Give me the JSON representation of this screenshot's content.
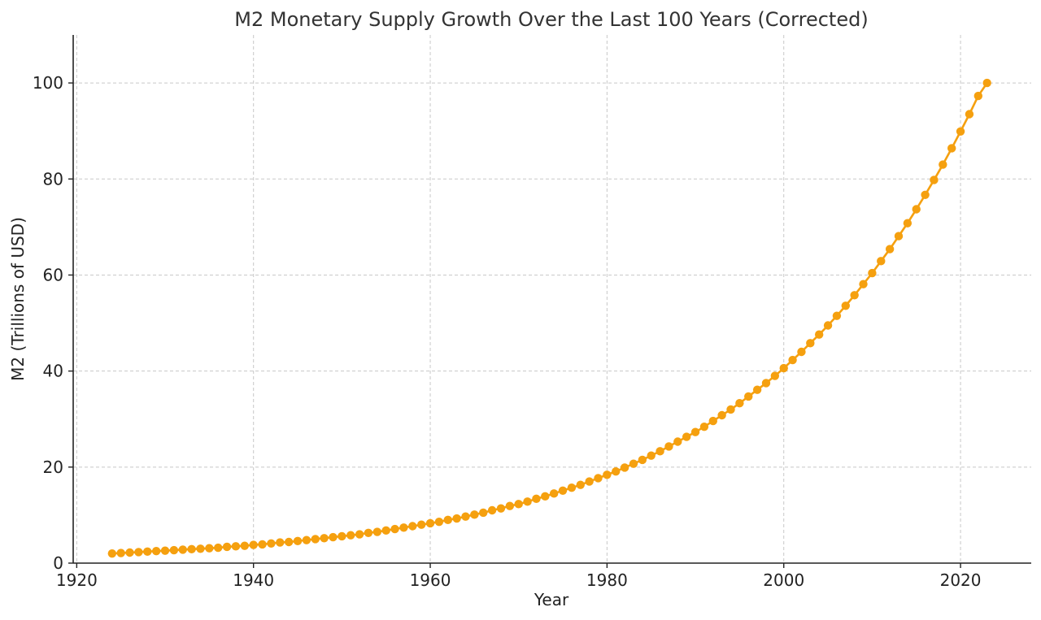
{
  "chart_data": {
    "type": "line",
    "title": "M2 Monetary Supply Growth Over the Last 100 Years (Corrected)",
    "xlabel": "Year",
    "ylabel": "M2 (Trillions of USD)",
    "xlim": [
      1919.6,
      2028.0
    ],
    "ylim": [
      0,
      110
    ],
    "xticks": [
      1920,
      1940,
      1960,
      1980,
      2000,
      2020
    ],
    "yticks": [
      0,
      20,
      40,
      60,
      80,
      100
    ],
    "grid": true,
    "color": "#f5a00f",
    "series": [
      {
        "x": [
          1924,
          1925,
          1926,
          1927,
          1928,
          1929,
          1930,
          1931,
          1932,
          1933,
          1934,
          1935,
          1936,
          1937,
          1938,
          1939,
          1940,
          1941,
          1942,
          1943,
          1944,
          1945,
          1946,
          1947,
          1948,
          1949,
          1950,
          1951,
          1952,
          1953,
          1954,
          1955,
          1956,
          1957,
          1958,
          1959,
          1960,
          1961,
          1962,
          1963,
          1964,
          1965,
          1966,
          1967,
          1968,
          1969,
          1970,
          1971,
          1972,
          1973,
          1974,
          1975,
          1976,
          1977,
          1978,
          1979,
          1980,
          1981,
          1982,
          1983,
          1984,
          1985,
          1986,
          1987,
          1988,
          1989,
          1990,
          1991,
          1992,
          1993,
          1994,
          1995,
          1996,
          1997,
          1998,
          1999,
          2000,
          2001,
          2002,
          2003,
          2004,
          2005,
          2006,
          2007,
          2008,
          2009,
          2010,
          2011,
          2012,
          2013,
          2014,
          2015,
          2016,
          2017,
          2018,
          2019,
          2020,
          2021,
          2022,
          2023
        ],
        "values": [
          2.0,
          2.1,
          2.2,
          2.3,
          2.4,
          2.5,
          2.6,
          2.7,
          2.8,
          2.9,
          3.0,
          3.1,
          3.2,
          3.4,
          3.5,
          3.6,
          3.8,
          3.9,
          4.1,
          4.3,
          4.4,
          4.6,
          4.8,
          5.0,
          5.2,
          5.4,
          5.6,
          5.8,
          6.0,
          6.3,
          6.5,
          6.8,
          7.1,
          7.4,
          7.7,
          8.0,
          8.3,
          8.6,
          9.0,
          9.3,
          9.7,
          10.1,
          10.5,
          11.0,
          11.4,
          11.9,
          12.3,
          12.8,
          13.4,
          13.9,
          14.5,
          15.1,
          15.7,
          16.3,
          17.0,
          17.7,
          18.4,
          19.1,
          19.9,
          20.7,
          21.5,
          22.4,
          23.3,
          24.3,
          25.3,
          26.3,
          27.3,
          28.4,
          29.6,
          30.8,
          32.0,
          33.3,
          34.7,
          36.1,
          37.5,
          39.0,
          40.6,
          42.3,
          44.0,
          45.8,
          47.6,
          49.5,
          51.5,
          53.6,
          55.8,
          58.1,
          60.4,
          62.9,
          65.4,
          68.1,
          70.8,
          73.7,
          76.7,
          79.8,
          83.0,
          86.4,
          89.9,
          93.5,
          97.3,
          100.0
        ]
      }
    ]
  }
}
